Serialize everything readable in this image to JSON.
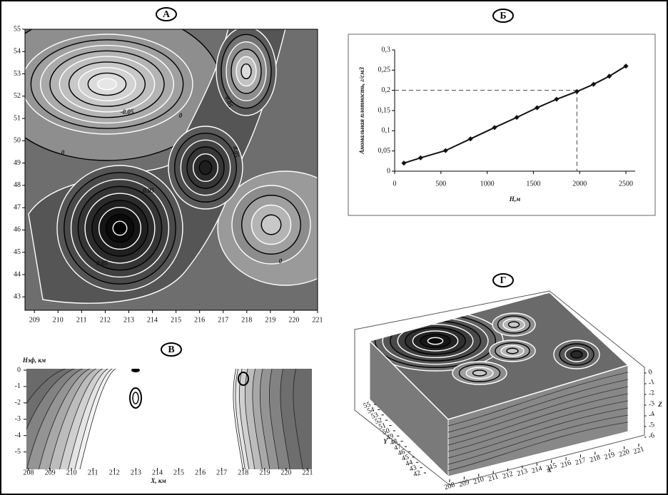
{
  "chart_data": [
    {
      "type": "contour",
      "title": "А",
      "xlim": [
        208.6,
        221
      ],
      "xticks": [
        209,
        210,
        211,
        212,
        213,
        214,
        215,
        216,
        217,
        218,
        219,
        220,
        221
      ],
      "ylim": [
        42.4,
        55
      ],
      "yticks": [
        43,
        44,
        45,
        46,
        47,
        48,
        49,
        50,
        51,
        52,
        53,
        54,
        55
      ],
      "contour_labels": [
        "-0.05",
        "0",
        "0",
        "0.05",
        "0.05",
        "0.05",
        "0.05",
        "0"
      ]
    },
    {
      "type": "line",
      "title": "Б",
      "x_label": "H,м",
      "y_label": "Аномальная плотность, г/см3",
      "x": [
        100,
        280,
        550,
        820,
        1080,
        1320,
        1540,
        1750,
        1970,
        2150,
        2320,
        2500
      ],
      "values": [
        0.02,
        0.033,
        0.051,
        0.08,
        0.108,
        0.133,
        0.157,
        0.178,
        0.197,
        0.215,
        0.235,
        0.26
      ],
      "color": "#111111",
      "xlim": [
        0,
        2600
      ],
      "xticks": [
        0,
        500,
        1000,
        1500,
        2000,
        2500
      ],
      "ylim": [
        0,
        0.3
      ],
      "yticks": [
        0,
        {
          "value": 0.05,
          "label": "0,05"
        },
        {
          "value": 0.1,
          "label": "0,1"
        },
        {
          "value": 0.15,
          "label": "0,15"
        },
        {
          "value": 0.2,
          "label": "0,2"
        },
        {
          "value": 0.25,
          "label": "0,25"
        },
        {
          "value": 0.3,
          "label": "0,3"
        }
      ],
      "reference_point": {
        "x": 1970,
        "y": 0.2
      }
    },
    {
      "type": "section",
      "title": "В",
      "x_label": "X, км",
      "y_label": "Hэф, км",
      "xlim": [
        207.9,
        221.2
      ],
      "xticks": [
        208,
        209,
        210,
        211,
        212,
        213,
        214,
        215,
        216,
        217,
        218,
        219,
        220,
        221
      ],
      "ylim": [
        -5.8,
        0
      ],
      "yticks": [
        0,
        -1,
        -2,
        -3,
        -4,
        -5
      ]
    },
    {
      "type": "surface3d",
      "title": "Г",
      "x_label": "X",
      "y_label": "Y",
      "z_label": "Z",
      "xlim": [
        208,
        221
      ],
      "xticks": [
        208,
        209,
        210,
        211,
        212,
        213,
        214,
        215,
        216,
        217,
        218,
        219,
        220,
        221
      ],
      "ylim": [
        42,
        55
      ],
      "yticks": [
        42,
        43,
        44,
        45,
        46,
        47,
        48,
        49,
        50,
        51,
        52,
        53,
        54,
        55
      ],
      "zlim": [
        -6,
        0
      ],
      "zticks": [
        0,
        -1,
        -2,
        -3,
        -4,
        -5,
        -6
      ]
    }
  ]
}
